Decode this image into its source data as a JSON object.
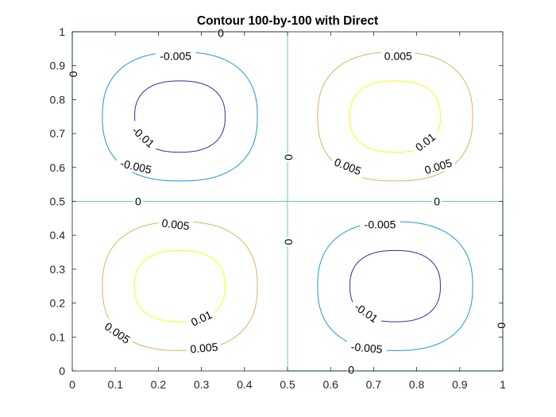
{
  "chart_data": {
    "type": "contour",
    "title": "Contour 100-by-100 with Direct",
    "xlabel": "",
    "ylabel": "",
    "xlim": [
      0,
      1
    ],
    "ylim": [
      0,
      1
    ],
    "x_ticks": [
      0,
      0.1,
      0.2,
      0.3,
      0.4,
      0.5,
      0.6,
      0.7,
      0.8,
      0.9,
      1
    ],
    "y_ticks": [
      0,
      0.1,
      0.2,
      0.3,
      0.4,
      0.5,
      0.6,
      0.7,
      0.8,
      0.9,
      1
    ],
    "x_tick_labels": [
      "0",
      "0.1",
      "0.2",
      "0.3",
      "0.4",
      "0.5",
      "0.6",
      "0.7",
      "0.8",
      "0.9",
      "1"
    ],
    "y_tick_labels": [
      "0",
      "0.1",
      "0.2",
      "0.3",
      "0.4",
      "0.5",
      "0.6",
      "0.7",
      "0.8",
      "0.9",
      "1"
    ],
    "grid": false,
    "colormap": "parula",
    "levels": [
      {
        "value": -0.01,
        "label": "-0.01",
        "color": "#3e26a8"
      },
      {
        "value": -0.005,
        "label": "-0.005",
        "color": "#1f96d9"
      },
      {
        "value": 0,
        "label": "0",
        "color": "#5bd4a4"
      },
      {
        "value": 0.005,
        "label": "0.005",
        "color": "#d8b55b"
      },
      {
        "value": 0.01,
        "label": "0.01",
        "color": "#f9fb14"
      }
    ],
    "contours": [
      {
        "level": -0.005,
        "cx": 0.25,
        "cy": 0.75,
        "rx": 0.18,
        "ry": 0.19
      },
      {
        "level": -0.01,
        "cx": 0.25,
        "cy": 0.75,
        "rx": 0.105,
        "ry": 0.105
      },
      {
        "level": 0.005,
        "cx": 0.75,
        "cy": 0.75,
        "rx": 0.18,
        "ry": 0.19
      },
      {
        "level": 0.01,
        "cx": 0.75,
        "cy": 0.75,
        "rx": 0.105,
        "ry": 0.105
      },
      {
        "level": 0.005,
        "cx": 0.25,
        "cy": 0.25,
        "rx": 0.18,
        "ry": 0.19
      },
      {
        "level": 0.01,
        "cx": 0.25,
        "cy": 0.25,
        "rx": 0.105,
        "ry": 0.105
      },
      {
        "level": -0.005,
        "cx": 0.75,
        "cy": 0.25,
        "rx": 0.18,
        "ry": 0.19
      },
      {
        "level": -0.01,
        "cx": 0.75,
        "cy": 0.25,
        "rx": 0.105,
        "ry": 0.105
      }
    ],
    "zero_lines": {
      "x": [
        0.5
      ],
      "y": [
        0.5
      ],
      "edges": [
        {
          "x": [
            0,
            0.5
          ],
          "y": [
            1,
            1
          ]
        },
        {
          "x": [
            0,
            0
          ],
          "y": [
            0.5,
            1
          ]
        },
        {
          "x": [
            0.5,
            1
          ],
          "y": [
            0,
            0
          ]
        },
        {
          "x": [
            1,
            1
          ],
          "y": [
            0,
            0.5
          ]
        }
      ]
    },
    "contour_labels": [
      {
        "text": "0",
        "x": 0.345,
        "y": 0.997,
        "angle": 0
      },
      {
        "text": "0",
        "x": 0.003,
        "y": 0.875,
        "angle": 90
      },
      {
        "text": "-0.005",
        "x": 0.24,
        "y": 0.929,
        "angle": 0
      },
      {
        "text": "-0.01",
        "x": 0.165,
        "y": 0.69,
        "angle": 42
      },
      {
        "text": "-0.005",
        "x": 0.148,
        "y": 0.603,
        "angle": 13
      },
      {
        "text": "0.005",
        "x": 0.757,
        "y": 0.929,
        "angle": 0
      },
      {
        "text": "0.01",
        "x": 0.82,
        "y": 0.675,
        "angle": -38
      },
      {
        "text": "0.005",
        "x": 0.64,
        "y": 0.603,
        "angle": 22
      },
      {
        "text": "0.005",
        "x": 0.85,
        "y": 0.603,
        "angle": -17
      },
      {
        "text": "0",
        "x": 0.503,
        "y": 0.63,
        "angle": 90
      },
      {
        "text": "0",
        "x": 0.153,
        "y": 0.5,
        "angle": 0
      },
      {
        "text": "0",
        "x": 0.847,
        "y": 0.5,
        "angle": 0
      },
      {
        "text": "0",
        "x": 0.503,
        "y": 0.38,
        "angle": 90
      },
      {
        "text": "0.005",
        "x": 0.24,
        "y": 0.432,
        "angle": 7
      },
      {
        "text": "-0.005",
        "x": 0.715,
        "y": 0.432,
        "angle": 0
      },
      {
        "text": "0.01",
        "x": 0.3,
        "y": 0.155,
        "angle": -25
      },
      {
        "text": "0.005",
        "x": 0.105,
        "y": 0.112,
        "angle": 35
      },
      {
        "text": "0.005",
        "x": 0.306,
        "y": 0.068,
        "angle": -5
      },
      {
        "text": "-0.01",
        "x": 0.683,
        "y": 0.172,
        "angle": 35
      },
      {
        "text": "-0.005",
        "x": 0.684,
        "y": 0.068,
        "angle": 5
      },
      {
        "text": "0",
        "x": 0.997,
        "y": 0.134,
        "angle": 90
      },
      {
        "text": "0",
        "x": 0.648,
        "y": 0.003,
        "angle": 0
      }
    ]
  }
}
